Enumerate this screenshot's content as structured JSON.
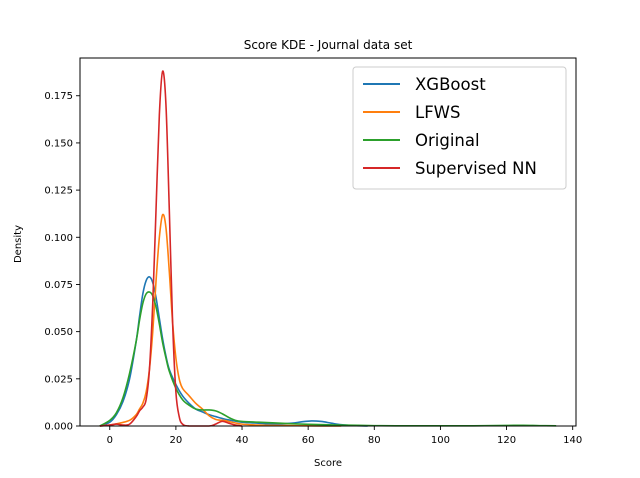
{
  "chart_data": {
    "type": "line",
    "title": "Score KDE - Journal data set",
    "xlabel": "Score",
    "ylabel": "Density",
    "xlim": [
      -9,
      141
    ],
    "ylim": [
      0,
      0.195
    ],
    "xticks": [
      0,
      20,
      40,
      60,
      80,
      100,
      120,
      140
    ],
    "yticks": [
      0.0,
      0.025,
      0.05,
      0.075,
      0.1,
      0.125,
      0.15,
      0.175
    ],
    "xtick_labels": [
      "0",
      "20",
      "40",
      "60",
      "80",
      "100",
      "120",
      "140"
    ],
    "ytick_labels": [
      "0.000",
      "0.025",
      "0.050",
      "0.075",
      "0.100",
      "0.125",
      "0.150",
      "0.175"
    ],
    "legend_position": "upper right",
    "grid": false,
    "series": [
      {
        "name": "XGBoost",
        "color": "#1f77b4",
        "points": [
          [
            -3,
            0
          ],
          [
            0,
            0.002
          ],
          [
            2,
            0.006
          ],
          [
            4,
            0.013
          ],
          [
            6,
            0.025
          ],
          [
            8,
            0.045
          ],
          [
            9,
            0.058
          ],
          [
            10,
            0.07
          ],
          [
            11,
            0.077
          ],
          [
            12,
            0.079
          ],
          [
            13,
            0.076
          ],
          [
            14,
            0.068
          ],
          [
            15,
            0.057
          ],
          [
            16,
            0.046
          ],
          [
            17,
            0.037
          ],
          [
            18,
            0.03
          ],
          [
            20,
            0.022
          ],
          [
            22,
            0.016
          ],
          [
            24,
            0.012
          ],
          [
            26,
            0.009
          ],
          [
            28,
            0.0075
          ],
          [
            30,
            0.006
          ],
          [
            32,
            0.005
          ],
          [
            34,
            0.004
          ],
          [
            36,
            0.0032
          ],
          [
            40,
            0.002
          ],
          [
            45,
            0.0015
          ],
          [
            50,
            0.001
          ],
          [
            55,
            0.0015
          ],
          [
            58,
            0.0022
          ],
          [
            61,
            0.0027
          ],
          [
            64,
            0.0024
          ],
          [
            67,
            0.0015
          ],
          [
            70,
            0.0007
          ],
          [
            74,
            0.0002
          ],
          [
            78,
            0
          ]
        ]
      },
      {
        "name": "LFWS",
        "color": "#ff7f0e",
        "points": [
          [
            -3,
            0
          ],
          [
            0,
            0.0005
          ],
          [
            3,
            0.0015
          ],
          [
            6,
            0.003
          ],
          [
            8,
            0.006
          ],
          [
            9,
            0.009
          ],
          [
            10,
            0.012
          ],
          [
            11,
            0.018
          ],
          [
            12,
            0.03
          ],
          [
            13,
            0.05
          ],
          [
            14,
            0.077
          ],
          [
            15,
            0.1
          ],
          [
            16,
            0.112
          ],
          [
            17,
            0.105
          ],
          [
            18,
            0.082
          ],
          [
            19,
            0.055
          ],
          [
            20,
            0.036
          ],
          [
            21,
            0.025
          ],
          [
            22,
            0.02
          ],
          [
            24,
            0.016
          ],
          [
            26,
            0.012
          ],
          [
            28,
            0.009
          ],
          [
            30,
            0.0055
          ],
          [
            32,
            0.0035
          ],
          [
            34,
            0.003
          ],
          [
            35,
            0.0028
          ],
          [
            37,
            0.002
          ],
          [
            40,
            0.001
          ],
          [
            45,
            0.0005
          ],
          [
            50,
            0.0003
          ],
          [
            60,
            0.0001
          ],
          [
            70,
            0
          ]
        ]
      },
      {
        "name": "Original",
        "color": "#2ca02c",
        "points": [
          [
            -3,
            0
          ],
          [
            0,
            0.003
          ],
          [
            2,
            0.007
          ],
          [
            4,
            0.015
          ],
          [
            6,
            0.028
          ],
          [
            8,
            0.045
          ],
          [
            9,
            0.056
          ],
          [
            10,
            0.065
          ],
          [
            11,
            0.07
          ],
          [
            12,
            0.071
          ],
          [
            13,
            0.069
          ],
          [
            14,
            0.063
          ],
          [
            15,
            0.054
          ],
          [
            16,
            0.044
          ],
          [
            17,
            0.036
          ],
          [
            18,
            0.029
          ],
          [
            20,
            0.02
          ],
          [
            22,
            0.014
          ],
          [
            24,
            0.011
          ],
          [
            26,
            0.009
          ],
          [
            28,
            0.0085
          ],
          [
            30,
            0.0085
          ],
          [
            32,
            0.008
          ],
          [
            34,
            0.0065
          ],
          [
            36,
            0.0045
          ],
          [
            38,
            0.003
          ],
          [
            40,
            0.0024
          ],
          [
            45,
            0.002
          ],
          [
            50,
            0.0016
          ],
          [
            55,
            0.0012
          ],
          [
            60,
            0.0009
          ],
          [
            65,
            0.0007
          ],
          [
            70,
            0.0005
          ],
          [
            75,
            0.0004
          ],
          [
            80,
            0.0002
          ],
          [
            90,
            0.0001
          ],
          [
            100,
            0.0001
          ],
          [
            110,
            0.0001
          ],
          [
            120,
            0.0003
          ],
          [
            125,
            0.0004
          ],
          [
            130,
            0.0002
          ],
          [
            135,
            0.0001
          ]
        ]
      },
      {
        "name": "Supervised NN",
        "color": "#d62728",
        "points": [
          [
            -3,
            0
          ],
          [
            0,
            0.0005
          ],
          [
            2,
            0.001
          ],
          [
            4,
            0.0005
          ],
          [
            6,
            0.001
          ],
          [
            8,
            0.005
          ],
          [
            9,
            0.008
          ],
          [
            10,
            0.01
          ],
          [
            11,
            0.014
          ],
          [
            12,
            0.03
          ],
          [
            13,
            0.065
          ],
          [
            14,
            0.115
          ],
          [
            15,
            0.165
          ],
          [
            16,
            0.188
          ],
          [
            17,
            0.17
          ],
          [
            18,
            0.115
          ],
          [
            19,
            0.055
          ],
          [
            20,
            0.018
          ],
          [
            21,
            0.005
          ],
          [
            22,
            0.001
          ],
          [
            24,
            0
          ],
          [
            30,
            0
          ],
          [
            32,
            0.001
          ],
          [
            34,
            0.0025
          ],
          [
            36,
            0.0015
          ],
          [
            38,
            0.0005
          ],
          [
            40,
            0
          ]
        ]
      }
    ]
  }
}
